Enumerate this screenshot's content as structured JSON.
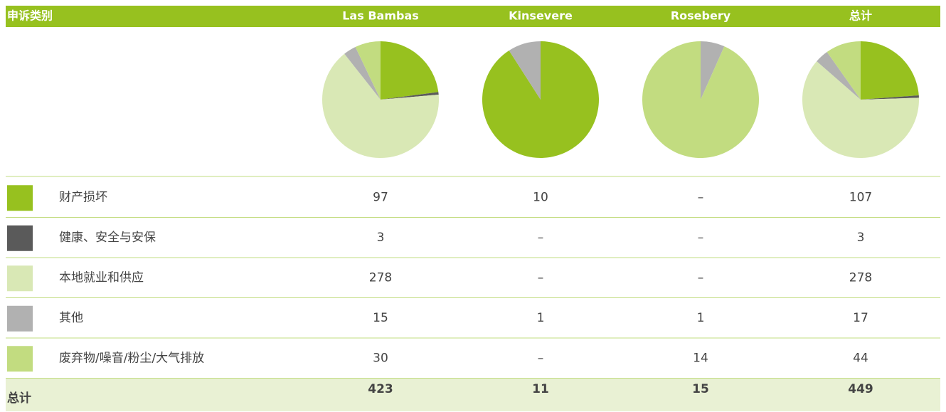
{
  "table": {
    "header": [
      "申诉类别",
      "Las Bambas",
      "Kinsevere",
      "Rosebery",
      "总计"
    ],
    "rows": [
      {
        "label": "财产损坏",
        "color": "#97c11f",
        "cells": [
          97,
          10,
          "–",
          107
        ]
      },
      {
        "label": "健康、安全与安保",
        "color": "#5a5a5a",
        "cells": [
          3,
          "–",
          "–",
          3
        ]
      },
      {
        "label": "本地就业和供应",
        "color": "#d9e8b5",
        "cells": [
          278,
          "–",
          "–",
          278
        ]
      },
      {
        "label": "其他",
        "color": "#b1b1b1",
        "cells": [
          15,
          1,
          1,
          17
        ]
      },
      {
        "label": "废弃物/噪音/粉尘/大气排放",
        "color": "#c2dc80",
        "cells": [
          30,
          "–",
          14,
          44
        ]
      }
    ],
    "total": {
      "label": "总计",
      "cells": [
        423,
        11,
        15,
        449
      ]
    }
  }
}
